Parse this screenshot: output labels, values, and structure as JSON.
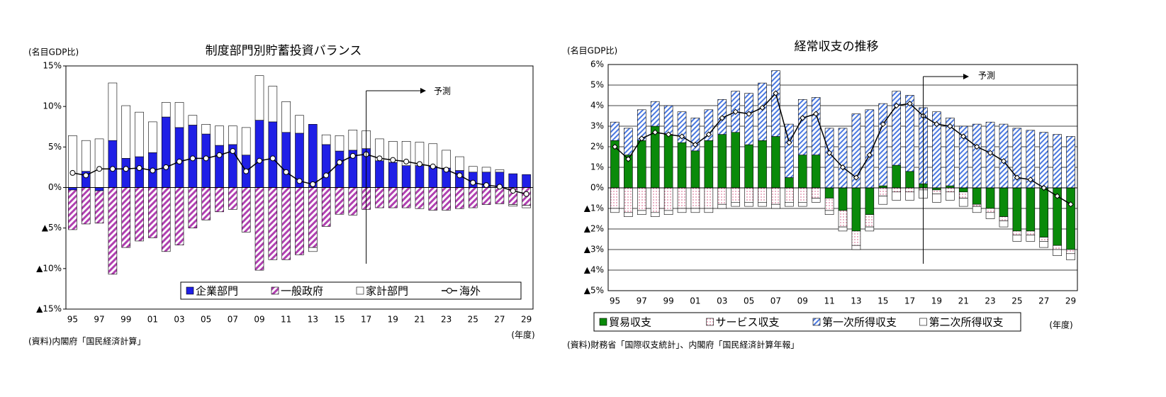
{
  "chart_data": [
    {
      "type": "stacked_bar_line",
      "title": "制度部門別貯蓄投資バランス",
      "y_label": "(名目GDP比)",
      "x_label": "(年度)",
      "source": "(資料)内閣府「国民経済計算」",
      "annotation": "予測",
      "grid": false,
      "categories": [
        "95",
        null,
        "97",
        null,
        "99",
        null,
        "01",
        null,
        "03",
        null,
        "05",
        null,
        "07",
        null,
        "09",
        null,
        "11",
        null,
        "13",
        null,
        "15",
        null,
        "17",
        null,
        "19",
        null,
        "21",
        null,
        "23",
        null,
        "25",
        null,
        "27",
        null,
        "29"
      ],
      "ylim": [
        -15,
        15
      ],
      "yticks": [
        {
          "value": 15,
          "label": "15%"
        },
        {
          "value": 10,
          "label": "10%"
        },
        {
          "value": 5,
          "label": "5%"
        },
        {
          "value": 0,
          "label": "0%"
        },
        {
          "value": -5,
          "label": "▲5%"
        },
        {
          "value": -10,
          "label": "▲10%"
        },
        {
          "value": -15,
          "label": "▲15%"
        }
      ],
      "series": [
        {
          "name": "企業部門",
          "kind": "bar",
          "color": "#1f1fe6",
          "values": [
            -0.3,
            2.0,
            -0.4,
            5.8,
            3.6,
            3.8,
            4.3,
            8.7,
            7.4,
            7.7,
            6.6,
            5.2,
            5.3,
            4.0,
            8.3,
            8.1,
            6.8,
            6.7,
            7.8,
            5.3,
            4.5,
            4.6,
            4.8,
            3.3,
            3.1,
            2.7,
            2.7,
            2.6,
            2.4,
            2.1,
            1.9,
            1.9,
            1.9,
            1.7,
            1.6
          ]
        },
        {
          "name": "一般政府",
          "kind": "bar",
          "color": "#b040b0",
          "pattern": "hatch",
          "values": [
            -4.9,
            -4.5,
            -4.0,
            -10.7,
            -7.4,
            -6.6,
            -6.2,
            -7.9,
            -7.1,
            -5.0,
            -4.0,
            -3.0,
            -2.7,
            -5.5,
            -10.2,
            -8.9,
            -8.9,
            -8.3,
            -7.4,
            -4.8,
            -3.3,
            -3.4,
            -2.7,
            -2.5,
            -2.5,
            -2.5,
            -2.6,
            -2.8,
            -2.8,
            -2.6,
            -2.5,
            -2.1,
            -2.0,
            -2.1,
            -2.2
          ]
        },
        {
          "name": "家計部門",
          "kind": "bar",
          "color": "#ffffff",
          "values": [
            6.4,
            3.8,
            6.0,
            7.1,
            6.5,
            5.5,
            3.8,
            1.8,
            3.1,
            1.2,
            1.2,
            2.4,
            2.3,
            3.4,
            5.5,
            4.4,
            3.8,
            2.2,
            -0.5,
            1.2,
            1.9,
            2.5,
            2.2,
            2.7,
            2.6,
            3.0,
            2.9,
            2.8,
            2.2,
            1.7,
            0.7,
            0.6,
            0.3,
            -0.2,
            -0.3
          ]
        },
        {
          "name": "海外",
          "kind": "line",
          "color": "#000000",
          "marker": "circle",
          "values": [
            1.8,
            1.5,
            2.3,
            2.3,
            2.3,
            2.4,
            2.1,
            2.5,
            3.2,
            3.6,
            3.6,
            4.0,
            4.5,
            2.0,
            3.3,
            3.6,
            1.9,
            0.8,
            0.4,
            1.5,
            3.1,
            3.9,
            4.1,
            3.6,
            3.4,
            3.2,
            2.9,
            2.6,
            2.2,
            1.5,
            0.6,
            0.3,
            0.1,
            -0.4,
            -0.8
          ]
        }
      ]
    },
    {
      "type": "stacked_bar_line",
      "title": "経常収支の推移",
      "y_label": "(名目GDP比)",
      "x_label": "(年度)",
      "source": "(資料)財務省「国際収支統計」、内閣府「国民経済計算年報」",
      "annotation": "予測",
      "grid": true,
      "categories": [
        "95",
        null,
        "97",
        null,
        "99",
        null,
        "01",
        null,
        "03",
        null,
        "05",
        null,
        "07",
        null,
        "09",
        null,
        "11",
        null,
        "13",
        null,
        "15",
        null,
        "17",
        null,
        "19",
        null,
        "21",
        null,
        "23",
        null,
        "25",
        null,
        "27",
        null,
        "29"
      ],
      "ylim": [
        -5,
        6
      ],
      "yticks": [
        {
          "value": 6,
          "label": "6%"
        },
        {
          "value": 5,
          "label": "5%"
        },
        {
          "value": 4,
          "label": "4%"
        },
        {
          "value": 3,
          "label": "3%"
        },
        {
          "value": 2,
          "label": "2%"
        },
        {
          "value": 1,
          "label": "1%"
        },
        {
          "value": 0,
          "label": "0%"
        },
        {
          "value": -1,
          "label": "▲1%"
        },
        {
          "value": -2,
          "label": "▲2%"
        },
        {
          "value": -3,
          "label": "▲3%"
        },
        {
          "value": -4,
          "label": "▲4%"
        },
        {
          "value": -5,
          "label": "▲5%"
        }
      ],
      "series": [
        {
          "name": "貿易収支",
          "kind": "bar",
          "color": "#0a8a0a",
          "values": [
            2.3,
            1.6,
            2.3,
            3.0,
            2.6,
            2.2,
            1.8,
            2.3,
            2.6,
            2.7,
            2.1,
            2.3,
            2.5,
            0.5,
            1.6,
            1.6,
            -0.5,
            -1.1,
            -2.1,
            -1.3,
            0.1,
            1.1,
            0.8,
            0.2,
            -0.1,
            0.1,
            -0.2,
            -0.8,
            -1.0,
            -1.4,
            -2.1,
            -2.1,
            -2.4,
            -2.8,
            -3.0
          ]
        },
        {
          "name": "サービス収支",
          "kind": "bar",
          "color": "#d04070",
          "pattern": "dots",
          "values": [
            -1.0,
            -1.2,
            -1.1,
            -1.2,
            -1.1,
            -1.0,
            -1.0,
            -1.0,
            -0.8,
            -0.7,
            -0.7,
            -0.7,
            -0.8,
            -0.7,
            -0.7,
            -0.5,
            -0.6,
            -0.8,
            -0.7,
            -0.6,
            -0.4,
            -0.2,
            -0.2,
            -0.1,
            -0.2,
            -0.2,
            -0.3,
            -0.1,
            -0.2,
            -0.2,
            -0.2,
            -0.2,
            -0.2,
            -0.2,
            -0.2
          ]
        },
        {
          "name": "第一次所得収支",
          "kind": "bar",
          "color": "#4a78e0",
          "pattern": "hatch",
          "values": [
            0.9,
            1.3,
            1.5,
            1.2,
            1.4,
            1.5,
            1.6,
            1.5,
            1.7,
            2.0,
            2.5,
            2.8,
            3.2,
            2.6,
            2.7,
            2.8,
            2.9,
            2.9,
            3.6,
            3.8,
            4.0,
            3.6,
            3.7,
            3.7,
            3.7,
            3.3,
            3.0,
            3.1,
            3.2,
            3.1,
            2.9,
            2.8,
            2.7,
            2.6,
            2.5
          ]
        },
        {
          "name": "第二次所得収支",
          "kind": "bar",
          "color": "#ffffff",
          "values": [
            -0.2,
            -0.2,
            -0.2,
            -0.2,
            -0.2,
            -0.2,
            -0.2,
            -0.2,
            -0.2,
            -0.2,
            -0.2,
            -0.2,
            -0.2,
            -0.2,
            -0.2,
            -0.2,
            -0.2,
            -0.2,
            -0.2,
            -0.2,
            -0.4,
            -0.4,
            -0.4,
            -0.4,
            -0.4,
            -0.4,
            -0.4,
            -0.3,
            -0.3,
            -0.3,
            -0.3,
            -0.3,
            -0.3,
            -0.3,
            -0.3
          ]
        },
        {
          "kind": "line",
          "color": "#000000",
          "marker": "diamond",
          "values": [
            2.0,
            1.4,
            2.4,
            2.7,
            2.6,
            2.5,
            2.1,
            2.6,
            3.4,
            3.7,
            3.6,
            3.9,
            4.6,
            2.2,
            3.4,
            3.6,
            1.7,
            1.0,
            0.5,
            1.6,
            3.1,
            4.0,
            4.1,
            3.5,
            3.1,
            3.0,
            2.5,
            2.0,
            1.7,
            1.3,
            0.5,
            0.4,
            0.0,
            -0.4,
            -0.8
          ]
        }
      ]
    }
  ]
}
